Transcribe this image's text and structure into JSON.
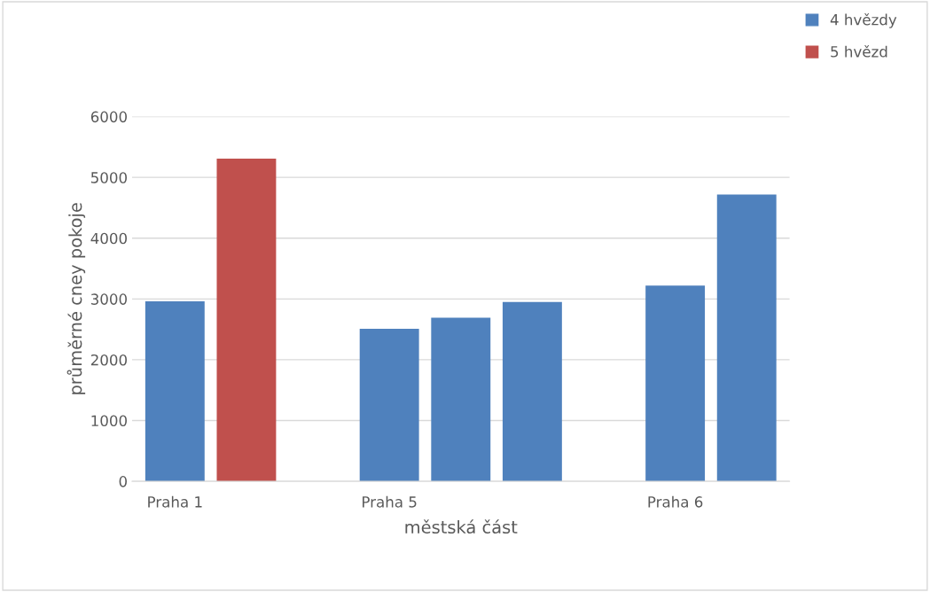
{
  "chart_data": {
    "type": "bar",
    "xlabel": "městská část",
    "ylabel": "průměrné cney pokoje",
    "categories": [
      "Praha 1",
      null,
      null,
      "Praha 5",
      null,
      null,
      null,
      "Praha 6",
      null
    ],
    "series": [
      {
        "name": "4 hvězdy",
        "color": "#4f81bd",
        "values": [
          2960,
          null,
          null,
          2510,
          2690,
          2950,
          null,
          3220,
          4720
        ]
      },
      {
        "name": "5 hvězd",
        "color": "#c0504d",
        "values": [
          null,
          5310,
          null,
          null,
          null,
          null,
          null,
          null,
          null
        ]
      }
    ],
    "ylim": [
      0,
      6000
    ],
    "yticks": [
      0,
      1000,
      2000,
      3000,
      4000,
      5000,
      6000
    ],
    "grid": "y",
    "legend": "top right"
  }
}
